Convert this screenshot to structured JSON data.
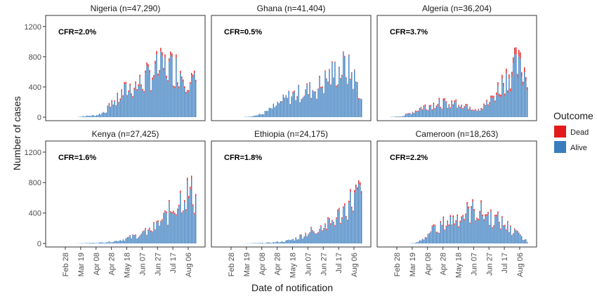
{
  "chart_data": {
    "type": "bar",
    "xlabel": "Date of notification",
    "ylabel": "Number of cases",
    "ylim": [
      0,
      1300
    ],
    "y_ticks": [
      0,
      400,
      800,
      1200
    ],
    "x_ticks": [
      "Feb 28",
      "Mar 19",
      "Apr 08",
      "Apr 28",
      "May 18",
      "Jun 07",
      "Jun 27",
      "Jul 17",
      "Aug 06"
    ],
    "legend": {
      "title": "Outcome",
      "position": "right",
      "entries": [
        {
          "name": "Dead",
          "color": "#e31a1c"
        },
        {
          "name": "Alive",
          "color": "#3a7dbf"
        }
      ]
    },
    "grid": false,
    "panels": [
      {
        "title": "Nigeria (n=47,290)",
        "cfr": "CFR=2.0%",
        "series_profile": [
          [
            0.14,
            0
          ],
          [
            0.2,
            15
          ],
          [
            0.28,
            25
          ],
          [
            0.33,
            60
          ],
          [
            0.38,
            130
          ],
          [
            0.43,
            210
          ],
          [
            0.48,
            320
          ],
          [
            0.53,
            380
          ],
          [
            0.6,
            420
          ],
          [
            0.66,
            520
          ],
          [
            0.72,
            610
          ],
          [
            0.79,
            640
          ],
          [
            0.86,
            620
          ],
          [
            0.91,
            560
          ],
          [
            0.96,
            470
          ],
          [
            1.0,
            420
          ]
        ],
        "dead_fraction": 0.02
      },
      {
        "title": "Ghana (n=41,404)",
        "cfr": "CFR=0.5%",
        "series_profile": [
          [
            0.14,
            0
          ],
          [
            0.2,
            10
          ],
          [
            0.28,
            40
          ],
          [
            0.33,
            90
          ],
          [
            0.38,
            150
          ],
          [
            0.43,
            210
          ],
          [
            0.48,
            270
          ],
          [
            0.53,
            300
          ],
          [
            0.58,
            330
          ],
          [
            0.63,
            350
          ],
          [
            0.68,
            380
          ],
          [
            0.72,
            430
          ],
          [
            0.76,
            520
          ],
          [
            0.82,
            600
          ],
          [
            0.88,
            650
          ],
          [
            0.93,
            560
          ],
          [
            0.97,
            420
          ],
          [
            1.0,
            200
          ]
        ],
        "dead_fraction": 0.005
      },
      {
        "title": "Algeria (n=36,204)",
        "cfr": "CFR=3.7%",
        "series_profile": [
          [
            0.0,
            0
          ],
          [
            0.1,
            15
          ],
          [
            0.18,
            70
          ],
          [
            0.25,
            130
          ],
          [
            0.33,
            160
          ],
          [
            0.42,
            180
          ],
          [
            0.5,
            185
          ],
          [
            0.57,
            150
          ],
          [
            0.63,
            110
          ],
          [
            0.68,
            120
          ],
          [
            0.73,
            190
          ],
          [
            0.78,
            320
          ],
          [
            0.83,
            450
          ],
          [
            0.88,
            560
          ],
          [
            0.92,
            620
          ],
          [
            0.96,
            590
          ],
          [
            1.0,
            530
          ]
        ],
        "dead_fraction": 0.037
      },
      {
        "title": "Kenya (n=27,425)",
        "cfr": "CFR=1.6%",
        "series_profile": [
          [
            0.12,
            0
          ],
          [
            0.2,
            5
          ],
          [
            0.3,
            10
          ],
          [
            0.4,
            25
          ],
          [
            0.48,
            55
          ],
          [
            0.55,
            90
          ],
          [
            0.62,
            130
          ],
          [
            0.68,
            170
          ],
          [
            0.73,
            240
          ],
          [
            0.78,
            330
          ],
          [
            0.83,
            440
          ],
          [
            0.88,
            560
          ],
          [
            0.93,
            650
          ],
          [
            0.97,
            640
          ],
          [
            1.0,
            560
          ]
        ],
        "dead_fraction": 0.016
      },
      {
        "title": "Ethiopia (n=24,175)",
        "cfr": "CFR=1.8%",
        "series_profile": [
          [
            0.14,
            0
          ],
          [
            0.25,
            5
          ],
          [
            0.35,
            12
          ],
          [
            0.45,
            30
          ],
          [
            0.52,
            60
          ],
          [
            0.58,
            110
          ],
          [
            0.64,
            160
          ],
          [
            0.7,
            200
          ],
          [
            0.75,
            230
          ],
          [
            0.8,
            290
          ],
          [
            0.85,
            380
          ],
          [
            0.9,
            480
          ],
          [
            0.95,
            600
          ],
          [
            1.0,
            620
          ]
        ],
        "dead_fraction": 0.018
      },
      {
        "title": "Cameroon (n=18,263)",
        "cfr": "CFR=2.2%",
        "series_profile": [
          [
            0.14,
            0
          ],
          [
            0.2,
            10
          ],
          [
            0.25,
            60
          ],
          [
            0.3,
            150
          ],
          [
            0.36,
            210
          ],
          [
            0.42,
            270
          ],
          [
            0.5,
            330
          ],
          [
            0.56,
            380
          ],
          [
            0.62,
            420
          ],
          [
            0.68,
            380
          ],
          [
            0.74,
            330
          ],
          [
            0.8,
            280
          ],
          [
            0.86,
            210
          ],
          [
            0.92,
            130
          ],
          [
            0.97,
            60
          ],
          [
            1.0,
            30
          ]
        ],
        "dead_fraction": 0.022
      }
    ]
  }
}
